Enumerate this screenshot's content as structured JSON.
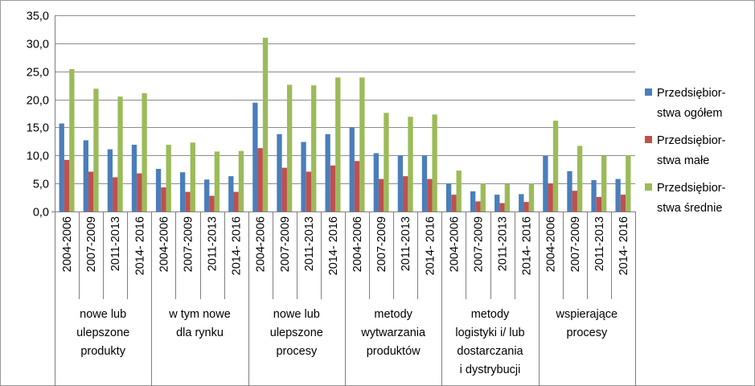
{
  "chart_data": {
    "type": "bar",
    "title": "",
    "xlabel": "",
    "ylabel": "",
    "ylim": [
      0,
      35
    ],
    "yticks": [
      "0,0",
      "5,0",
      "10,0",
      "15,0",
      "20,0",
      "25,0",
      "30,0",
      "35,0"
    ],
    "grid": true,
    "legend_position": "right",
    "groups": [
      {
        "label_lines": [
          "nowe lub",
          "ulepszone",
          "produkty"
        ]
      },
      {
        "label_lines": [
          "w tym nowe",
          "dla rynku"
        ]
      },
      {
        "label_lines": [
          "nowe lub",
          "ulepszone",
          "procesy"
        ]
      },
      {
        "label_lines": [
          "metody",
          "wytwarzania",
          "produktów"
        ]
      },
      {
        "label_lines": [
          "metody",
          "logistyki i/ lub",
          "dostarczania",
          "i dystrybucji"
        ]
      },
      {
        "label_lines": [
          "wspierające",
          "procesy"
        ]
      }
    ],
    "periods": [
      "2004-2006",
      "2007-2009",
      "2011-2013",
      "2014- 2016"
    ],
    "series": [
      {
        "name_lines": [
          "Przedsiębior-",
          "stwa ogółem"
        ],
        "color": "#4a7ebb",
        "values": [
          15.7,
          12.7,
          11.1,
          11.9,
          7.6,
          7.0,
          5.7,
          6.3,
          19.4,
          13.8,
          12.4,
          13.8,
          15.0,
          10.4,
          10.0,
          10.0,
          5.0,
          3.6,
          3.0,
          3.1,
          9.9,
          7.2,
          5.6,
          5.8
        ]
      },
      {
        "name_lines": [
          "Przedsiębior-",
          "stwa małe"
        ],
        "color": "#c0504d",
        "values": [
          9.2,
          7.1,
          6.1,
          6.8,
          4.3,
          3.5,
          2.8,
          3.5,
          11.3,
          7.8,
          7.1,
          8.2,
          9.0,
          5.8,
          6.3,
          5.8,
          3.0,
          1.8,
          1.5,
          1.7,
          5.0,
          3.7,
          2.6,
          3.0
        ]
      },
      {
        "name_lines": [
          "Przedsiębior-",
          "stwa średnie"
        ],
        "color": "#9bbb59",
        "values": [
          25.4,
          21.9,
          20.5,
          21.1,
          11.9,
          12.3,
          10.7,
          10.8,
          31.0,
          22.6,
          22.5,
          23.9,
          23.9,
          17.6,
          16.9,
          17.3,
          7.3,
          5.0,
          4.9,
          5.0,
          16.2,
          11.7,
          9.9,
          10.0
        ]
      }
    ]
  }
}
